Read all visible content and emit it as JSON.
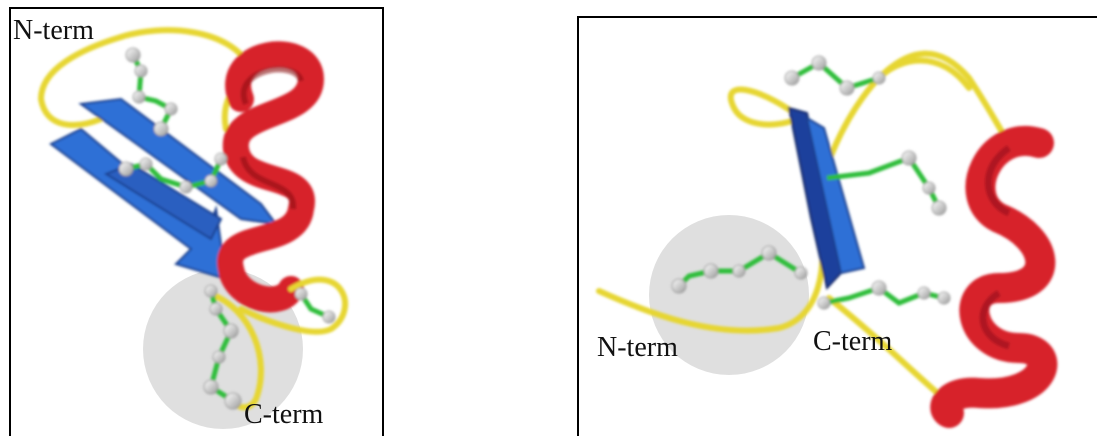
{
  "panels": {
    "left": {
      "n_term_label": "N-term",
      "c_term_label": "C-term"
    },
    "right": {
      "n_term_label": "N-term",
      "c_term_label": "C-term"
    }
  },
  "colors": {
    "helix": "#d7222b",
    "helix_dark": "#8c1018",
    "sheet": "#2f6fd6",
    "sheet_dark": "#1a3f8f",
    "coil": "#e6d630",
    "bond": "#2ebd3a",
    "atom": "#d8d8d8",
    "highlight_circle": "#dcdcdc"
  }
}
